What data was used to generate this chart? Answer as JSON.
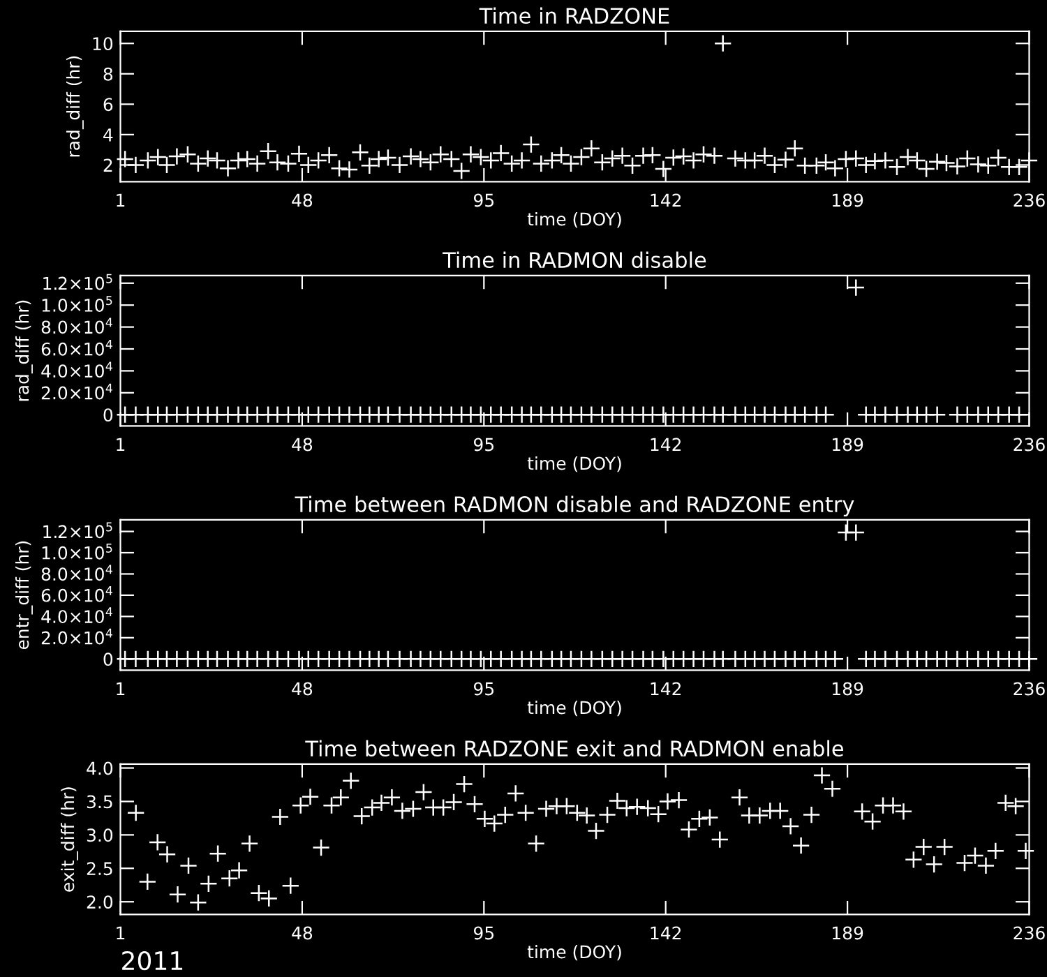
{
  "chart_data": [
    {
      "type": "scatter",
      "title": "Time in RADZONE",
      "xlabel": "time (DOY)",
      "ylabel": "rad_diff (hr)",
      "marker": "cross",
      "color": "#ffffff",
      "x": [
        2.2,
        4.96,
        8.1,
        10.7,
        13.0,
        15.6,
        18.4,
        21.1,
        23.6,
        26.0,
        28.8,
        31.5,
        33.8,
        36.4,
        39.2,
        41.6,
        44.4,
        47.2,
        49.6,
        52.2,
        55.0,
        57.6,
        60.2,
        63.0,
        65.4,
        67.8,
        70.2,
        73.2,
        76.1,
        78.6,
        81.2,
        83.8,
        86.6,
        89.2,
        91.6,
        94.2,
        96.8,
        99.4,
        102.2,
        104.8,
        107.2,
        109.8,
        112.6,
        115.0,
        117.5,
        120.2,
        122.8,
        125.6,
        128.2,
        130.8,
        133.4,
        136.2,
        138.6,
        141.4,
        144.0,
        146.6,
        149.2,
        151.8,
        154.6,
        156.8,
        160.0,
        162.6,
        165.0,
        167.6,
        170.2,
        173.0,
        175.4,
        178.0,
        181.0,
        183.4,
        185.8,
        188.6,
        191.2,
        193.8,
        196.1,
        198.8,
        201.8,
        204.6,
        207.0,
        209.4,
        212.2,
        214.6,
        217.4,
        220.0,
        222.8,
        225.4,
        228.0,
        230.8,
        233.4,
        236.0
      ],
      "values": [
        2.39,
        2.0,
        2.3,
        2.52,
        2.0,
        2.57,
        2.7,
        2.09,
        2.43,
        2.3,
        1.78,
        2.3,
        2.39,
        2.09,
        2.91,
        2.17,
        2.09,
        2.74,
        2.0,
        2.3,
        2.65,
        1.78,
        1.7,
        2.83,
        1.96,
        2.39,
        2.48,
        2.0,
        2.57,
        2.39,
        2.17,
        2.7,
        2.39,
        1.61,
        2.7,
        2.52,
        2.3,
        2.78,
        2.09,
        2.3,
        3.35,
        2.09,
        2.3,
        2.65,
        2.09,
        2.52,
        3.09,
        2.17,
        2.43,
        2.61,
        1.96,
        2.61,
        2.65,
        1.74,
        2.48,
        2.57,
        2.3,
        2.7,
        2.61,
        10.0,
        2.43,
        2.3,
        2.3,
        2.61,
        2.0,
        2.35,
        3.09,
        1.96,
        1.96,
        2.17,
        1.78,
        2.39,
        2.43,
        2.0,
        2.26,
        2.3,
        1.87,
        2.52,
        2.3,
        1.74,
        2.22,
        2.13,
        1.91,
        2.43,
        2.04,
        1.96,
        2.48,
        1.87,
        1.87,
        2.3
      ],
      "xlim": [
        1,
        236
      ],
      "xticks": [
        1,
        48,
        95,
        142,
        189,
        236
      ],
      "ylim": [
        0.9,
        10.8
      ],
      "yticks": [
        2,
        4,
        6,
        8,
        10
      ]
    },
    {
      "type": "scatter",
      "title": "Time in RADMON disable",
      "xlabel": "time (DOY)",
      "ylabel": "rad_diff (hr)",
      "marker": "cross",
      "color": "#ffffff",
      "x": [
        2.2,
        4.96,
        8.1,
        10.7,
        13.0,
        15.6,
        18.4,
        21.1,
        23.6,
        26.0,
        28.8,
        31.5,
        33.8,
        36.4,
        39.2,
        41.6,
        44.4,
        47.2,
        49.6,
        52.2,
        55.0,
        57.6,
        60.2,
        63.0,
        65.4,
        67.8,
        70.2,
        73.2,
        76.1,
        78.6,
        81.2,
        83.8,
        86.6,
        89.2,
        91.6,
        94.2,
        96.8,
        99.4,
        102.2,
        104.8,
        107.2,
        109.8,
        112.6,
        115.0,
        117.5,
        120.2,
        122.8,
        125.6,
        128.2,
        130.8,
        133.4,
        136.2,
        138.6,
        141.4,
        144.0,
        146.6,
        149.2,
        151.8,
        154.6,
        156.8,
        160.0,
        162.6,
        165.0,
        167.6,
        170.2,
        173.0,
        175.4,
        178.0,
        181.0,
        183.4,
        191.2,
        193.8,
        196.1,
        198.8,
        201.8,
        204.6,
        207.0,
        209.4,
        212.2,
        217.4,
        220.0,
        222.8,
        225.4,
        228.0,
        230.8,
        233.4
      ],
      "values": [
        0,
        0,
        0,
        0,
        0,
        0,
        0,
        0,
        0,
        0,
        0,
        0,
        0,
        0,
        0,
        0,
        0,
        0,
        0,
        0,
        0,
        0,
        0,
        0,
        0,
        0,
        0,
        0,
        0,
        0,
        0,
        0,
        0,
        0,
        0,
        0,
        0,
        0,
        0,
        0,
        0,
        0,
        0,
        0,
        0,
        0,
        0,
        0,
        0,
        0,
        0,
        0,
        0,
        0,
        0,
        0,
        0,
        0,
        0,
        0,
        0,
        0,
        0,
        0,
        0,
        0,
        0,
        0,
        0,
        0,
        116000,
        0,
        0,
        0,
        0,
        0,
        0,
        0,
        0,
        0,
        0,
        0,
        0,
        0,
        0,
        0
      ],
      "xlim": [
        1,
        236
      ],
      "xticks": [
        1,
        48,
        95,
        142,
        189,
        236
      ],
      "ylim": [
        -10300,
        127000
      ],
      "yticks": [
        0,
        {
          "value": 20000,
          "label": "2.0×10$^{4}$"
        },
        {
          "value": 40000,
          "label": "4.0×10$^{4}$"
        },
        {
          "value": 60000,
          "label": "6.0×10$^{4}$"
        },
        {
          "value": 80000,
          "label": "8.0×10$^{4}$"
        },
        {
          "value": 100000,
          "label": "1.0×10$^{5}$"
        },
        {
          "value": 120000,
          "label": "1.2×10$^{5}$"
        }
      ]
    },
    {
      "type": "scatter",
      "title": "Time between RADMON disable and RADZONE entry",
      "xlabel": "time (DOY)",
      "ylabel": "entr_diff (hr)",
      "marker": "cross",
      "color": "#ffffff",
      "x": [
        2.2,
        4.96,
        8.1,
        10.7,
        13.0,
        15.6,
        18.4,
        21.1,
        23.6,
        26.0,
        28.8,
        31.5,
        33.8,
        36.4,
        39.2,
        41.6,
        44.4,
        47.2,
        49.6,
        52.2,
        55.0,
        57.6,
        60.2,
        63.0,
        65.4,
        67.8,
        70.2,
        73.2,
        76.1,
        78.6,
        81.2,
        83.8,
        86.6,
        89.2,
        91.6,
        94.2,
        96.8,
        99.4,
        102.2,
        104.8,
        107.2,
        109.8,
        112.6,
        115.0,
        117.5,
        120.2,
        122.8,
        125.6,
        128.2,
        130.8,
        133.4,
        136.2,
        138.6,
        141.4,
        144.0,
        146.6,
        149.2,
        151.8,
        154.6,
        156.8,
        160.0,
        162.6,
        165.0,
        167.6,
        170.2,
        173.0,
        175.4,
        178.0,
        181.0,
        183.4,
        185.8,
        188.6,
        191.2,
        193.8,
        196.1,
        198.8,
        201.8,
        204.6,
        207.0,
        209.4,
        212.2,
        214.6,
        217.4,
        220.0,
        222.8,
        225.4,
        228.0,
        230.8,
        233.4,
        236.0
      ],
      "values": [
        0,
        0,
        0,
        0,
        0,
        0,
        0,
        0,
        0,
        0,
        0,
        0,
        0,
        0,
        0,
        0,
        0,
        0,
        0,
        0,
        0,
        0,
        0,
        0,
        0,
        0,
        0,
        0,
        0,
        0,
        0,
        0,
        0,
        0,
        0,
        0,
        0,
        0,
        0,
        0,
        0,
        0,
        0,
        0,
        0,
        0,
        0,
        0,
        0,
        0,
        0,
        0,
        0,
        0,
        0,
        0,
        0,
        0,
        0,
        0,
        0,
        0,
        0,
        0,
        0,
        0,
        0,
        0,
        0,
        0,
        0,
        119000,
        119000,
        0,
        0,
        0,
        0,
        0,
        0,
        0,
        0,
        0,
        0,
        0,
        0,
        0,
        0,
        0,
        0,
        0
      ],
      "xlim": [
        1,
        236
      ],
      "xticks": [
        1,
        48,
        95,
        142,
        189,
        236
      ],
      "ylim": [
        -10600,
        131000
      ],
      "yticks": [
        0,
        {
          "value": 20000,
          "label": "2.0×10$^{4}$"
        },
        {
          "value": 40000,
          "label": "4.0×10$^{4}$"
        },
        {
          "value": 60000,
          "label": "6.0×10$^{4}$"
        },
        {
          "value": 80000,
          "label": "8.0×10$^{4}$"
        },
        {
          "value": 100000,
          "label": "1.0×10$^{5}$"
        },
        {
          "value": 120000,
          "label": "1.2×10$^{5}$"
        }
      ]
    },
    {
      "type": "scatter",
      "title": "Time between RADZONE exit and RADMON enable",
      "xlabel": "time (DOY)",
      "ylabel": "exit_diff (hr)",
      "marker": "cross",
      "color": "#ffffff",
      "x": [
        5.0,
        8.0,
        10.6,
        13.1,
        15.8,
        18.6,
        21.1,
        23.8,
        26.2,
        29.2,
        31.7,
        34.4,
        36.8,
        39.4,
        42.3,
        45.0,
        47.6,
        50.1,
        52.9,
        55.6,
        58.0,
        60.6,
        63.4,
        66.1,
        68.5,
        71.2,
        73.9,
        76.7,
        79.4,
        81.9,
        84.5,
        87.2,
        89.9,
        92.6,
        95.2,
        97.7,
        100.5,
        103.2,
        105.8,
        108.5,
        111.1,
        113.8,
        116.4,
        119.1,
        121.6,
        124.0,
        126.9,
        129.5,
        131.9,
        134.6,
        137.4,
        140.1,
        142.5,
        145.4,
        148.0,
        150.7,
        153.4,
        156.0,
        161.1,
        163.6,
        166.3,
        169.0,
        171.6,
        174.3,
        177.0,
        179.7,
        182.4,
        185.1,
        192.8,
        195.5,
        198.2,
        200.8,
        203.5,
        206.1,
        208.7,
        211.4,
        214.1,
        219.3,
        222.0,
        224.8,
        227.3,
        229.9,
        232.5,
        235.1
      ],
      "values": [
        3.33,
        2.3,
        2.89,
        2.71,
        2.11,
        2.54,
        1.99,
        2.27,
        2.72,
        2.35,
        2.47,
        2.87,
        2.13,
        2.05,
        3.27,
        2.24,
        3.44,
        3.57,
        2.81,
        3.44,
        3.56,
        3.81,
        3.28,
        3.41,
        3.48,
        3.56,
        3.36,
        3.39,
        3.64,
        3.41,
        3.41,
        3.49,
        3.76,
        3.46,
        3.24,
        3.17,
        3.3,
        3.62,
        3.33,
        2.87,
        3.39,
        3.43,
        3.43,
        3.33,
        3.29,
        3.06,
        3.3,
        3.51,
        3.4,
        3.42,
        3.4,
        3.31,
        3.5,
        3.52,
        3.08,
        3.24,
        3.26,
        2.93,
        3.56,
        3.29,
        3.29,
        3.36,
        3.36,
        3.13,
        2.84,
        3.3,
        3.89,
        3.69,
        3.35,
        3.2,
        3.44,
        3.44,
        3.35,
        2.63,
        2.82,
        2.56,
        2.82,
        2.58,
        2.69,
        2.54,
        2.76,
        3.48,
        3.43,
        2.76
      ],
      "xlim": [
        1,
        236
      ],
      "xticks": [
        1,
        48,
        95,
        142,
        189,
        236
      ],
      "ylim": [
        1.81,
        4.06
      ],
      "yticks": [
        {
          "value": 2.0,
          "label": "2.0"
        },
        {
          "value": 2.5,
          "label": "2.5"
        },
        {
          "value": 3.0,
          "label": "3.0"
        },
        {
          "value": 3.5,
          "label": "3.5"
        },
        {
          "value": 4.0,
          "label": "4.0"
        }
      ],
      "annotations": [
        "2011"
      ]
    }
  ]
}
